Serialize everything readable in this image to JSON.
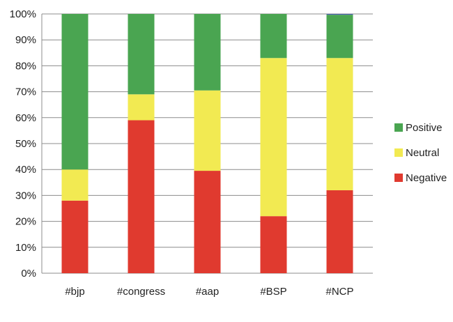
{
  "chart_data": {
    "type": "bar",
    "stacked": true,
    "percent": true,
    "categories": [
      "#bjp",
      "#congress",
      "#aap",
      "#BSP",
      "#NCP"
    ],
    "series": [
      {
        "name": "Negative",
        "color": "#e03a2f",
        "values": [
          28,
          59,
          39.5,
          22,
          32
        ]
      },
      {
        "name": "Neutral",
        "color": "#f2ea52",
        "values": [
          12,
          10,
          31,
          61,
          51
        ]
      },
      {
        "name": "Positive",
        "color": "#4aa551",
        "values": [
          60,
          31,
          29.5,
          17,
          16.7
        ]
      }
    ],
    "extra_segment": {
      "color": "#4b5fb0",
      "values": [
        0,
        0,
        0,
        0,
        0.3
      ]
    },
    "y_ticks": [
      "0%",
      "10%",
      "20%",
      "30%",
      "40%",
      "50%",
      "60%",
      "70%",
      "80%",
      "90%",
      "100%"
    ],
    "ylim": [
      0,
      100
    ],
    "grid": true,
    "legend": {
      "placement": "right",
      "items": [
        "Positive",
        "Neutral",
        "Negative"
      ]
    },
    "title": "",
    "xlabel": "",
    "ylabel": ""
  }
}
